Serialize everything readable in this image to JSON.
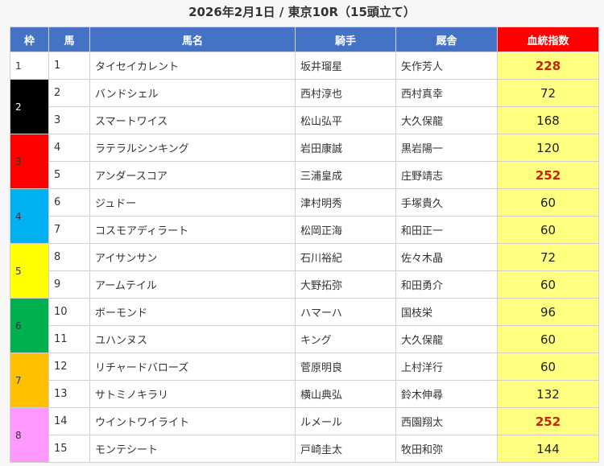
{
  "title": "2026年2月1日 / 東京10R（15頭立て）",
  "headers": {
    "frame": "枠",
    "number": "馬",
    "name": "馬名",
    "jockey": "騎手",
    "trainer": "厩舎",
    "index": "血統指数"
  },
  "colors": {
    "header": "#4472c4",
    "index_header": "#ff0000",
    "index_cell": "#ffff80",
    "highlight_text": "#cc2200"
  },
  "frames": [
    {
      "frame": "1",
      "color": "#ffffff",
      "text_color": "#333333",
      "horses": [
        {
          "number": "1",
          "name": "タイセイカレント",
          "jockey": "坂井瑠星",
          "trainer": "矢作芳人",
          "index": "228",
          "highlight": true
        }
      ]
    },
    {
      "frame": "2",
      "color": "#000000",
      "text_color": "#ffffff",
      "horses": [
        {
          "number": "2",
          "name": "バンドシェル",
          "jockey": "西村淳也",
          "trainer": "西村真幸",
          "index": "72",
          "highlight": false
        },
        {
          "number": "3",
          "name": "スマートワイス",
          "jockey": "松山弘平",
          "trainer": "大久保龍",
          "index": "168",
          "highlight": false
        }
      ]
    },
    {
      "frame": "3",
      "color": "#ff0000",
      "text_color": "#333333",
      "horses": [
        {
          "number": "4",
          "name": "ラテラルシンキング",
          "jockey": "岩田康誠",
          "trainer": "黒岩陽一",
          "index": "120",
          "highlight": false
        },
        {
          "number": "5",
          "name": "アンダースコア",
          "jockey": "三浦皇成",
          "trainer": "庄野靖志",
          "index": "252",
          "highlight": true
        }
      ]
    },
    {
      "frame": "4",
      "color": "#00b0f0",
      "text_color": "#333333",
      "horses": [
        {
          "number": "6",
          "name": "ジュドー",
          "jockey": "津村明秀",
          "trainer": "手塚貴久",
          "index": "60",
          "highlight": false
        },
        {
          "number": "7",
          "name": "コスモアディラート",
          "jockey": "松岡正海",
          "trainer": "和田正一",
          "index": "60",
          "highlight": false
        }
      ]
    },
    {
      "frame": "5",
      "color": "#ffff00",
      "text_color": "#333333",
      "horses": [
        {
          "number": "8",
          "name": "アイサンサン",
          "jockey": "石川裕紀",
          "trainer": "佐々木晶",
          "index": "72",
          "highlight": false
        },
        {
          "number": "9",
          "name": "アームテイル",
          "jockey": "大野拓弥",
          "trainer": "和田勇介",
          "index": "60",
          "highlight": false
        }
      ]
    },
    {
      "frame": "6",
      "color": "#00b050",
      "text_color": "#333333",
      "horses": [
        {
          "number": "10",
          "name": "ボーモンド",
          "jockey": "ハマーハ",
          "trainer": "国枝栄",
          "index": "96",
          "highlight": false
        },
        {
          "number": "11",
          "name": "ユハンヌス",
          "jockey": "キング",
          "trainer": "大久保龍",
          "index": "60",
          "highlight": false
        }
      ]
    },
    {
      "frame": "7",
      "color": "#ffc000",
      "text_color": "#333333",
      "horses": [
        {
          "number": "12",
          "name": "リチャードバローズ",
          "jockey": "菅原明良",
          "trainer": "上村洋行",
          "index": "60",
          "highlight": false
        },
        {
          "number": "13",
          "name": "サトミノキラリ",
          "jockey": "横山典弘",
          "trainer": "鈴木伸尋",
          "index": "132",
          "highlight": false
        }
      ]
    },
    {
      "frame": "8",
      "color": "#ff99ff",
      "text_color": "#333333",
      "horses": [
        {
          "number": "14",
          "name": "ウイントワイライト",
          "jockey": "ルメール",
          "trainer": "西園翔太",
          "index": "252",
          "highlight": true
        },
        {
          "number": "15",
          "name": "モンテシート",
          "jockey": "戸崎圭太",
          "trainer": "牧田和弥",
          "index": "144",
          "highlight": false
        }
      ]
    }
  ]
}
